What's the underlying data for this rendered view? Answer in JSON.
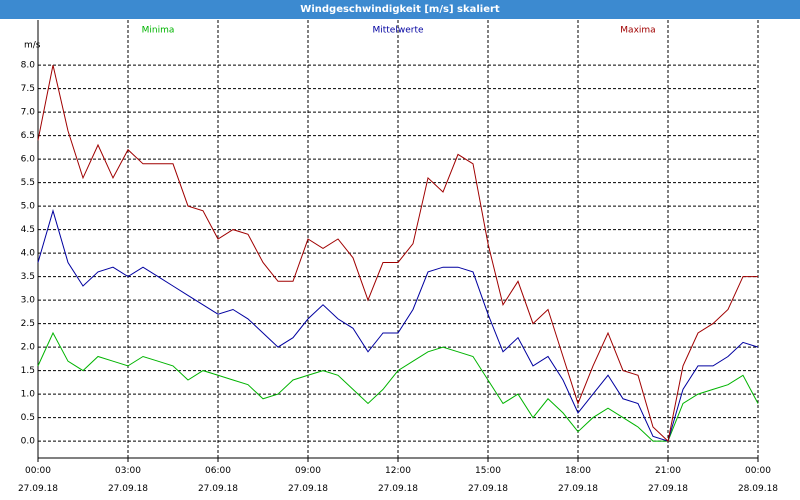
{
  "chart_data": {
    "type": "line",
    "title": "Windgeschwindigkeit [m/s] skaliert",
    "y_label": "m/s",
    "xlim": [
      0,
      24
    ],
    "ylim": [
      -0.36,
      8.96
    ],
    "grid": true,
    "xticks": [
      {
        "value": 0,
        "label": "00:00\n27.09.18"
      },
      {
        "value": 3,
        "label": "03:00\n27.09.18"
      },
      {
        "value": 6,
        "label": "06:00\n27.09.18"
      },
      {
        "value": 9,
        "label": "09:00\n27.09.18"
      },
      {
        "value": 12,
        "label": "12:00\n27.09.18"
      },
      {
        "value": 15,
        "label": "15:00\n27.09.18"
      },
      {
        "value": 18,
        "label": "18:00\n27.09.18"
      },
      {
        "value": 21,
        "label": "21:00\n27.09.18"
      },
      {
        "value": 24,
        "label": "00:00\n28.09.18"
      }
    ],
    "yticks": [
      {
        "value": 0,
        "label": "0.0"
      },
      0.5,
      {
        "value": 1,
        "label": "1.0"
      },
      1.5,
      {
        "value": 2,
        "label": "2.0"
      },
      2.5,
      {
        "value": 3,
        "label": "3.0"
      },
      3.5,
      {
        "value": 4,
        "label": "4.0"
      },
      4.5,
      {
        "value": 5,
        "label": "5.0"
      },
      5.5,
      {
        "value": 6,
        "label": "6.0"
      },
      6.5,
      {
        "value": 7,
        "label": "7.0"
      },
      7.5,
      {
        "value": 8,
        "label": "8.0"
      }
    ],
    "x": [
      0,
      0.5,
      1,
      1.5,
      2,
      2.5,
      3,
      3.5,
      4,
      4.5,
      5,
      5.5,
      6,
      6.5,
      7,
      7.5,
      8,
      8.5,
      9,
      9.5,
      10,
      10.5,
      11,
      11.5,
      12,
      12.5,
      13,
      13.5,
      14,
      14.5,
      15,
      15.5,
      16,
      16.5,
      17,
      17.5,
      18,
      18.5,
      19,
      19.5,
      20,
      20.5,
      21,
      21.5,
      22,
      22.5,
      23,
      23.5,
      24
    ],
    "series": [
      {
        "name": "Minima",
        "color": "#00b400",
        "values": [
          1.6,
          2.3,
          1.7,
          1.5,
          1.8,
          1.7,
          1.6,
          1.8,
          1.7,
          1.6,
          1.3,
          1.5,
          1.4,
          1.3,
          1.2,
          0.9,
          1.0,
          1.3,
          1.4,
          1.5,
          1.4,
          1.1,
          0.8,
          1.1,
          1.5,
          1.7,
          1.9,
          2.0,
          1.9,
          1.8,
          1.3,
          0.8,
          1.0,
          0.5,
          0.9,
          0.6,
          0.2,
          0.5,
          0.7,
          0.5,
          0.3,
          0.0,
          0.0,
          0.8,
          1.0,
          1.1,
          1.2,
          1.4,
          0.8
        ]
      },
      {
        "name": "Mittelwerte",
        "color": "#0000a0",
        "values": [
          3.8,
          4.9,
          3.8,
          3.3,
          3.6,
          3.7,
          3.5,
          3.7,
          3.5,
          3.3,
          3.1,
          2.9,
          2.7,
          2.8,
          2.6,
          2.3,
          2.0,
          2.2,
          2.6,
          2.9,
          2.6,
          2.4,
          1.9,
          2.3,
          2.3,
          2.8,
          3.6,
          3.7,
          3.7,
          3.6,
          2.7,
          1.9,
          2.2,
          1.6,
          1.8,
          1.3,
          0.6,
          1.0,
          1.4,
          0.9,
          0.8,
          0.1,
          0.0,
          1.1,
          1.6,
          1.6,
          1.8,
          2.1,
          2.0
        ]
      },
      {
        "name": "Maxima",
        "color": "#a00000",
        "values": [
          6.4,
          8.0,
          6.6,
          5.6,
          6.3,
          5.6,
          6.2,
          5.9,
          5.9,
          5.9,
          5.0,
          4.9,
          4.3,
          4.5,
          4.4,
          3.8,
          3.4,
          3.4,
          4.3,
          4.1,
          4.3,
          3.9,
          3.0,
          3.8,
          3.8,
          4.2,
          5.6,
          5.3,
          6.1,
          5.9,
          4.2,
          2.9,
          3.4,
          2.5,
          2.8,
          1.8,
          0.8,
          1.6,
          2.3,
          1.5,
          1.4,
          0.3,
          0.0,
          1.6,
          2.3,
          2.5,
          2.8,
          3.5,
          3.5
        ]
      }
    ]
  }
}
